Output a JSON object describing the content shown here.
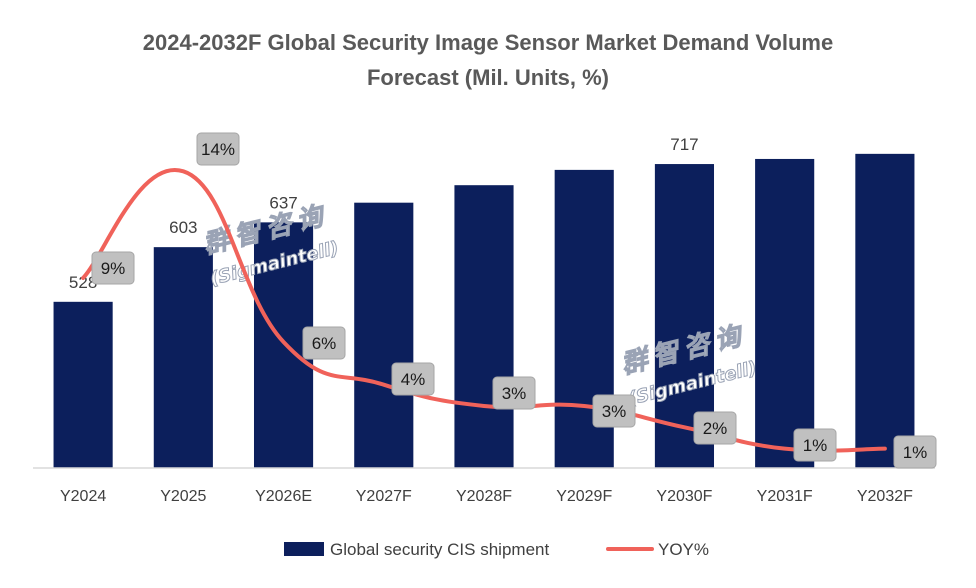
{
  "chart_data": {
    "type": "bar",
    "title_lines": [
      "2024-2032F Global Security Image Sensor Market Demand Volume",
      "Forecast (Mil. Units, %)"
    ],
    "categories": [
      "Y2024",
      "Y2025",
      "Y2026E",
      "Y2027F",
      "Y2028F",
      "Y2029F",
      "Y2030F",
      "Y2031F",
      "Y2032F"
    ],
    "series": [
      {
        "name": "Global security CIS shipment",
        "type": "bar",
        "color": "#0c1f5c",
        "values": [
          528,
          603,
          637,
          664,
          688,
          709,
          717,
          724,
          731
        ],
        "data_labels": [
          "528",
          "603",
          "637",
          "",
          "",
          "",
          "717",
          "",
          ""
        ]
      },
      {
        "name": "YOY%",
        "type": "line",
        "color": "#f0625a",
        "values": [
          9,
          14,
          6,
          4,
          3,
          3,
          2,
          1,
          1
        ],
        "data_labels": [
          "9%",
          "14%",
          "6%",
          "4%",
          "3%",
          "3%",
          "2%",
          "1%",
          "1%"
        ]
      }
    ],
    "ylim": [
      0,
      750
    ],
    "legend_position": "bottom",
    "grid": false
  },
  "watermark": {
    "cn": "群智咨询",
    "en": "(Sigmaintell)"
  }
}
